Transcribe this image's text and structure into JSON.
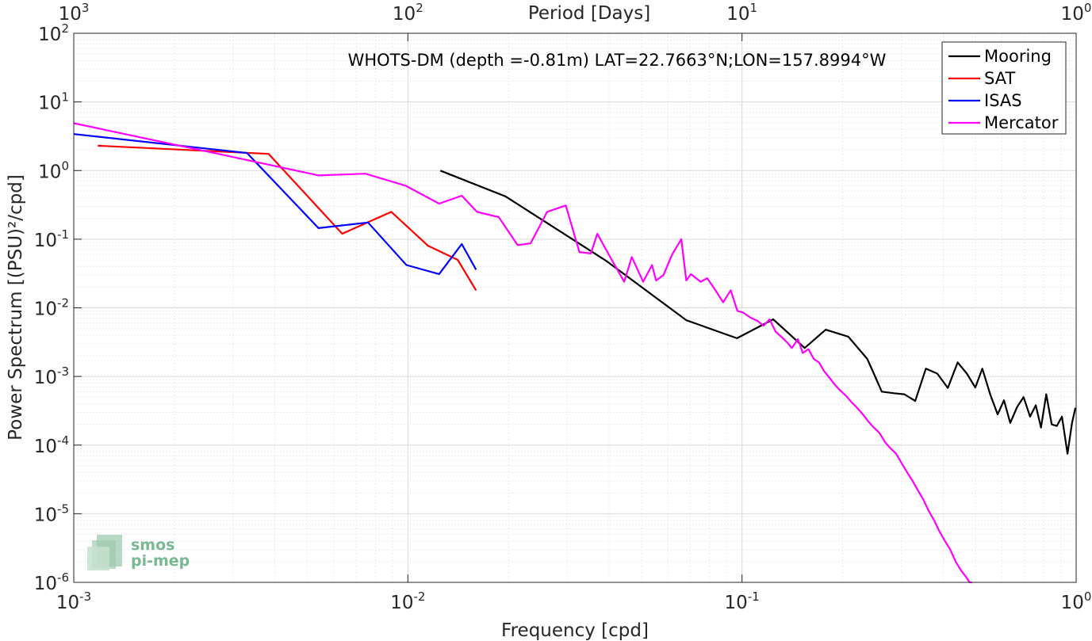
{
  "chart_data": {
    "type": "line",
    "title": "WHOTS-DM (depth =-0.81m) LAT=22.7663°N;LON=157.8994°W",
    "xlabel": "Frequency [cpd]",
    "ylabel": "Power Spectrum [(PSU)²/cpd]",
    "top_xlabel": "Period [Days]",
    "x_scale": "log",
    "y_scale": "log",
    "xlim": [
      0.001,
      1
    ],
    "ylim": [
      1e-06,
      100
    ],
    "top_xlim": [
      1000,
      1
    ],
    "x_ticks": [
      {
        "base": "10",
        "exp": "-3",
        "value": 0.001
      },
      {
        "base": "10",
        "exp": "-2",
        "value": 0.01
      },
      {
        "base": "10",
        "exp": "-1",
        "value": 0.1
      },
      {
        "base": "10",
        "exp": "0",
        "value": 1
      }
    ],
    "top_x_ticks": [
      {
        "base": "10",
        "exp": "3",
        "value": 1000
      },
      {
        "base": "10",
        "exp": "2",
        "value": 100
      },
      {
        "base": "10",
        "exp": "1",
        "value": 10
      },
      {
        "base": "10",
        "exp": "0",
        "value": 1
      }
    ],
    "y_ticks": [
      {
        "base": "10",
        "exp": "-6",
        "value": 1e-06
      },
      {
        "base": "10",
        "exp": "-5",
        "value": 1e-05
      },
      {
        "base": "10",
        "exp": "-4",
        "value": 0.0001
      },
      {
        "base": "10",
        "exp": "-3",
        "value": 0.001
      },
      {
        "base": "10",
        "exp": "-2",
        "value": 0.01
      },
      {
        "base": "10",
        "exp": "-1",
        "value": 0.1
      },
      {
        "base": "10",
        "exp": "0",
        "value": 1
      },
      {
        "base": "10",
        "exp": "1",
        "value": 10
      },
      {
        "base": "10",
        "exp": "2",
        "value": 100
      }
    ],
    "grid": true,
    "legend_position": "top-right",
    "series": [
      {
        "name": "Mooring",
        "color": "#000000",
        "x": [
          0.0125,
          0.0196,
          0.0393,
          0.0681,
          0.0966,
          0.124,
          0.154,
          0.178,
          0.208,
          0.237,
          0.248,
          0.262,
          0.285,
          0.306,
          0.33,
          0.355,
          0.384,
          0.413,
          0.442,
          0.471,
          0.499,
          0.524,
          0.553,
          0.582,
          0.608,
          0.635,
          0.666,
          0.696,
          0.728,
          0.757,
          0.785,
          0.814,
          0.845,
          0.875,
          0.907,
          0.942,
          0.972,
          0.995
        ],
        "values": [
          1.0,
          0.42,
          0.048,
          0.0066,
          0.0036,
          0.0068,
          0.0026,
          0.0048,
          0.0038,
          0.0018,
          0.0011,
          0.0006,
          0.00057,
          0.00055,
          0.00044,
          0.0013,
          0.0011,
          0.00068,
          0.0016,
          0.0011,
          0.00069,
          0.0013,
          0.00055,
          0.00028,
          0.00045,
          0.00021,
          0.00036,
          0.0005,
          0.00026,
          0.00038,
          0.00018,
          0.00055,
          0.0002,
          0.00019,
          0.00026,
          7.5e-05,
          0.00021,
          0.00035
        ]
      },
      {
        "name": "SAT",
        "color": "#ff0000",
        "x": [
          0.00118,
          0.00383,
          0.00636,
          0.00892,
          0.0115,
          0.0141,
          0.016
        ],
        "values": [
          2.3,
          1.75,
          0.12,
          0.25,
          0.08,
          0.05,
          0.018
        ]
      },
      {
        "name": "ISAS",
        "color": "#0000ff",
        "x": [
          0.001,
          0.0033,
          0.0054,
          0.0076,
          0.0099,
          0.0124,
          0.0145,
          0.016
        ],
        "values": [
          3.4,
          1.8,
          0.145,
          0.175,
          0.042,
          0.031,
          0.085,
          0.036
        ]
      },
      {
        "name": "Mercator",
        "color": "#ff00ff",
        "x": [
          0.001,
          0.0025,
          0.00541,
          0.00746,
          0.00986,
          0.0124,
          0.0145,
          0.0161,
          0.0187,
          0.0213,
          0.0233,
          0.0261,
          0.0297,
          0.0326,
          0.0353,
          0.0369,
          0.0403,
          0.0444,
          0.0468,
          0.0506,
          0.0538,
          0.0553,
          0.0582,
          0.0618,
          0.0658,
          0.0681,
          0.0703,
          0.0752,
          0.0787,
          0.0833,
          0.0878,
          0.0925,
          0.0969,
          0.101,
          0.106,
          0.111,
          0.116,
          0.121,
          0.126,
          0.131,
          0.136,
          0.141,
          0.147,
          0.152,
          0.158,
          0.164,
          0.17,
          0.176,
          0.183,
          0.19,
          0.197,
          0.205,
          0.213,
          0.221,
          0.23,
          0.239,
          0.248,
          0.258,
          0.268,
          0.278,
          0.289,
          0.3,
          0.312,
          0.324,
          0.336,
          0.349,
          0.362,
          0.376,
          0.39,
          0.405,
          0.42,
          0.436,
          0.452,
          0.468,
          0.48,
          0.488
        ],
        "values": [
          4.9,
          1.9,
          0.85,
          0.9,
          0.6,
          0.33,
          0.43,
          0.25,
          0.21,
          0.082,
          0.087,
          0.25,
          0.31,
          0.065,
          0.062,
          0.12,
          0.055,
          0.024,
          0.055,
          0.024,
          0.042,
          0.025,
          0.03,
          0.06,
          0.1,
          0.025,
          0.031,
          0.024,
          0.027,
          0.018,
          0.012,
          0.018,
          0.009,
          0.0085,
          0.0072,
          0.0065,
          0.0055,
          0.0068,
          0.0045,
          0.0038,
          0.0032,
          0.0026,
          0.0035,
          0.0022,
          0.0025,
          0.0018,
          0.0016,
          0.0012,
          0.00095,
          0.00075,
          0.00062,
          0.00052,
          0.00042,
          0.00035,
          0.00028,
          0.00022,
          0.00018,
          0.00015,
          0.00011,
          9e-05,
          7.5e-05,
          5.5e-05,
          4e-05,
          3e-05,
          2.2e-05,
          1.6e-05,
          1.1e-05,
          8e-06,
          5.5e-06,
          4e-06,
          3e-06,
          2e-06,
          1.5e-06,
          1.2e-06,
          1e-06,
          1e-06
        ]
      }
    ]
  },
  "logo": {
    "line1": "smos",
    "line2": "pi-mep",
    "color": "#7ab894"
  }
}
